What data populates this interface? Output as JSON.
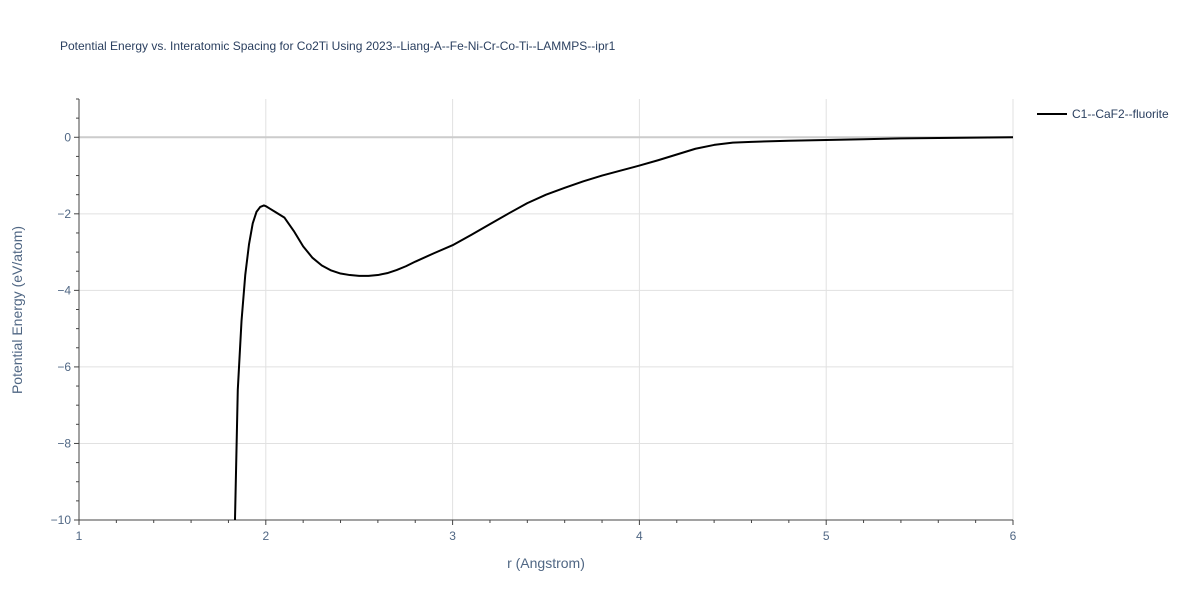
{
  "chart_data": {
    "type": "line",
    "title": "Potential Energy vs. Interatomic Spacing for Co2Ti Using 2023--Liang-A--Fe-Ni-Cr-Co-Ti--LAMMPS--ipr1",
    "xlabel": "r (Angstrom)",
    "ylabel": "Potential Energy (eV/atom)",
    "xlim": [
      1,
      6
    ],
    "ylim": [
      -10,
      1
    ],
    "xticks": [
      1,
      2,
      3,
      4,
      5,
      6
    ],
    "xtick_labels": [
      "1",
      "2",
      "3",
      "4",
      "5",
      "6"
    ],
    "yticks": [
      0,
      -2,
      -4,
      -6,
      -8,
      -10
    ],
    "ytick_labels": [
      "0",
      "−2",
      "−4",
      "−6",
      "−8",
      "−10"
    ],
    "grid": true,
    "legend_position": "top-right",
    "line_color": "#000000",
    "series": [
      {
        "name": "C1--CaF2--fluorite",
        "x": [
          1.835,
          1.85,
          1.87,
          1.89,
          1.91,
          1.93,
          1.95,
          1.97,
          1.99,
          2.0,
          2.02,
          2.05,
          2.1,
          2.15,
          2.2,
          2.25,
          2.3,
          2.35,
          2.4,
          2.45,
          2.5,
          2.55,
          2.6,
          2.65,
          2.7,
          2.75,
          2.8,
          2.9,
          3.0,
          3.1,
          3.2,
          3.3,
          3.4,
          3.5,
          3.6,
          3.7,
          3.8,
          3.9,
          4.0,
          4.1,
          4.2,
          4.3,
          4.4,
          4.5,
          4.6,
          4.8,
          5.0,
          5.2,
          5.4,
          5.6,
          5.8,
          6.0
        ],
        "y": [
          -10.0,
          -6.6,
          -4.8,
          -3.6,
          -2.8,
          -2.25,
          -1.95,
          -1.82,
          -1.78,
          -1.8,
          -1.86,
          -1.95,
          -2.1,
          -2.45,
          -2.85,
          -3.15,
          -3.35,
          -3.48,
          -3.56,
          -3.6,
          -3.62,
          -3.62,
          -3.6,
          -3.55,
          -3.47,
          -3.37,
          -3.25,
          -3.03,
          -2.82,
          -2.55,
          -2.27,
          -1.99,
          -1.72,
          -1.5,
          -1.32,
          -1.15,
          -1.0,
          -0.87,
          -0.74,
          -0.6,
          -0.45,
          -0.3,
          -0.2,
          -0.14,
          -0.12,
          -0.09,
          -0.07,
          -0.05,
          -0.03,
          -0.02,
          -0.01,
          0.0
        ]
      }
    ]
  }
}
